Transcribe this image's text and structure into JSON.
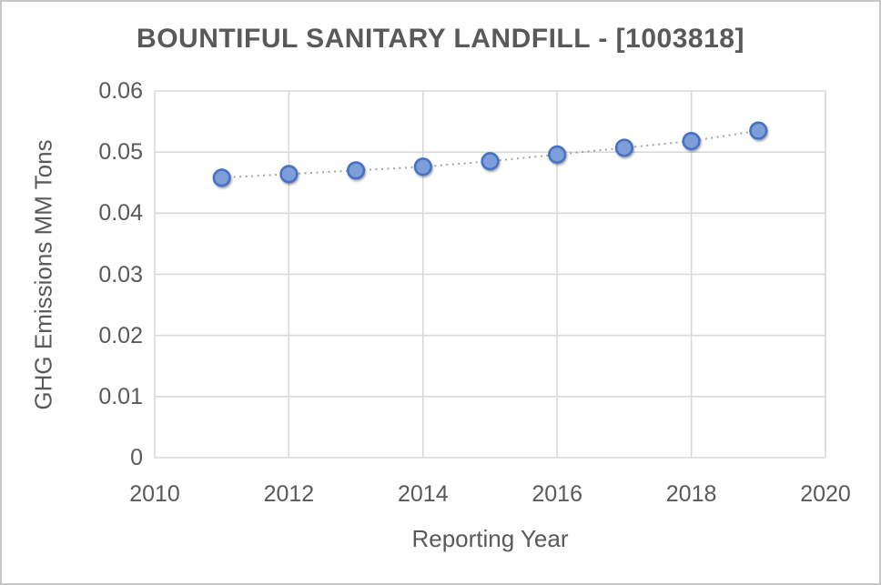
{
  "window": {
    "background": "#ffffff",
    "border_color": "#c6c6c6"
  },
  "chart_data": {
    "type": "scatter",
    "title": "BOUNTIFUL SANITARY LANDFILL - [1003818]",
    "xlabel": "Reporting Year",
    "ylabel": "GHG Emissions MM Tons",
    "x": [
      2011,
      2012,
      2013,
      2014,
      2015,
      2016,
      2017,
      2018,
      2019
    ],
    "y": [
      0.0458,
      0.0464,
      0.047,
      0.0476,
      0.0485,
      0.0496,
      0.0507,
      0.0518,
      0.0535
    ],
    "xlim": [
      2010,
      2020
    ],
    "ylim": [
      0,
      0.06
    ],
    "x_ticks": [
      2010,
      2012,
      2014,
      2016,
      2018,
      2020
    ],
    "x_tick_labels": [
      "2010",
      "2012",
      "2014",
      "2016",
      "2018",
      "2020"
    ],
    "y_ticks": [
      0,
      0.01,
      0.02,
      0.03,
      0.04,
      0.05,
      0.06
    ],
    "y_tick_labels": [
      "0",
      "0.01",
      "0.02",
      "0.03",
      "0.04",
      "0.05",
      "0.06"
    ],
    "grid": true,
    "legend": "none",
    "line_between_points": "dotted",
    "colors": {
      "marker_fill": "#7d9ed9",
      "marker_border": "#4472c4",
      "trend_line": "#a3a3a3",
      "gridline": "#d9d9d9",
      "text": "#595959"
    }
  }
}
